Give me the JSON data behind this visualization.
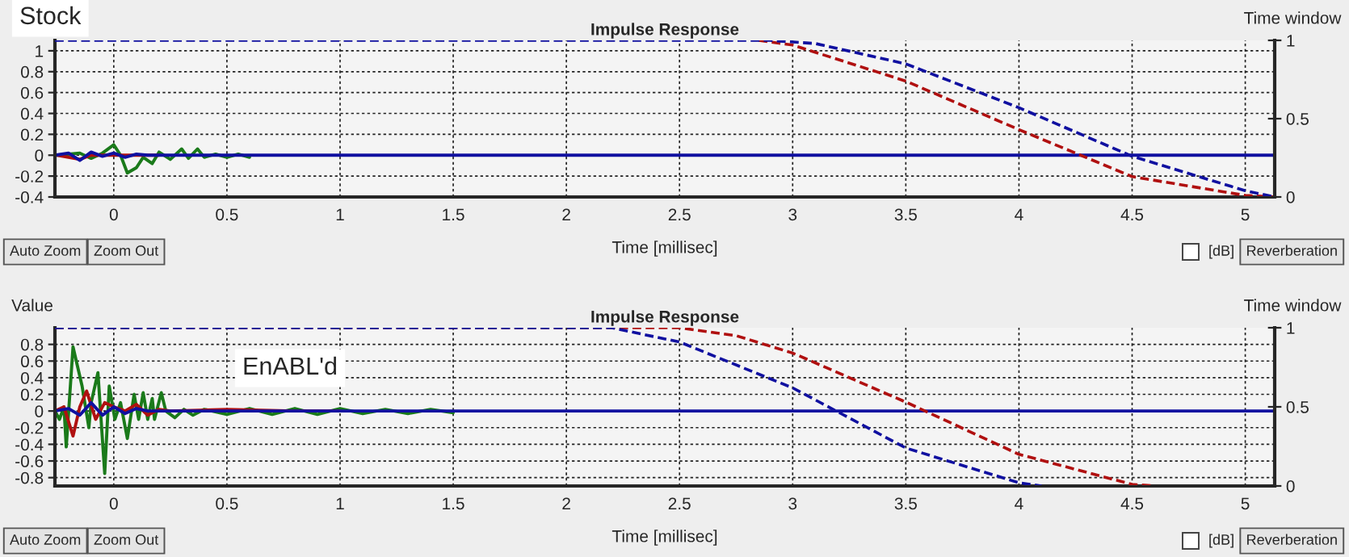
{
  "chart_data": [
    {
      "type": "line",
      "title": "Impulse Response",
      "xlabel": "Time [millisec]",
      "y2label": "Time window",
      "xlim": [
        -0.26,
        5.13
      ],
      "ylim": [
        -0.4,
        1.1
      ],
      "y2lim": [
        0,
        1
      ],
      "xticks": [
        0,
        0.5,
        1,
        1.5,
        2,
        2.5,
        3,
        3.5,
        4,
        4.5,
        5
      ],
      "yticks": [
        -0.4,
        -0.2,
        0,
        0.2,
        0.4,
        0.6,
        0.8,
        1
      ],
      "y2ticks": [
        0,
        0.5,
        1
      ],
      "grid": true,
      "legend": false,
      "annotations": [
        "Stock",
        "Auto Zoom",
        "Zoom Out",
        "[dB]",
        "Reverberation"
      ],
      "series": [
        {
          "color": "#1a7a1a",
          "x": [
            -0.25,
            -0.15,
            -0.1,
            -0.05,
            0,
            0.03,
            0.06,
            0.1,
            0.13,
            0.17,
            0.2,
            0.25,
            0.3,
            0.33,
            0.37,
            0.4,
            0.45,
            0.5,
            0.55,
            0.6
          ],
          "values": [
            0,
            0.02,
            -0.03,
            0.02,
            0.1,
            0,
            -0.17,
            -0.12,
            -0.02,
            -0.08,
            0.03,
            -0.04,
            0.06,
            -0.03,
            0.06,
            -0.02,
            0.01,
            -0.02,
            0.01,
            -0.02
          ]
        },
        {
          "color": "#b01010",
          "x": [
            -0.25,
            -0.15,
            -0.1,
            -0.05,
            0,
            0.1,
            0.2
          ],
          "values": [
            0,
            -0.04,
            0,
            0,
            0,
            0,
            0
          ]
        },
        {
          "color": "#1010a0",
          "x": [
            -0.26,
            -0.2,
            -0.15,
            -0.1,
            -0.05,
            0,
            0.05,
            0.1,
            0.15,
            5.13
          ],
          "values": [
            0,
            0.02,
            -0.05,
            0.03,
            -0.01,
            0.02,
            -0.02,
            0.01,
            0,
            0
          ]
        },
        {
          "color": "#b01010",
          "axis": "y2",
          "line_style": "dashed",
          "x": [
            2.85,
            3.0,
            3.5,
            4.0,
            4.5,
            5.0,
            5.13
          ],
          "values": [
            1,
            0.97,
            0.74,
            0.43,
            0.13,
            0.01,
            0
          ]
        },
        {
          "color": "#1010a0",
          "axis": "y2",
          "line_style": "dashed",
          "x": [
            -0.26,
            2.9,
            3.1,
            3.5,
            4.0,
            4.5,
            5.0,
            5.13
          ],
          "values": [
            1,
            1,
            0.98,
            0.85,
            0.57,
            0.26,
            0.04,
            0
          ]
        }
      ]
    },
    {
      "type": "line",
      "title": "Impulse Response",
      "xlabel": "Time [millisec]",
      "ylabel": "Value",
      "y2label": "Time window",
      "xlim": [
        -0.26,
        5.13
      ],
      "ylim": [
        -0.9,
        1.0
      ],
      "y2lim": [
        0,
        1
      ],
      "xticks": [
        0,
        0.5,
        1,
        1.5,
        2,
        2.5,
        3,
        3.5,
        4,
        4.5,
        5
      ],
      "yticks": [
        -0.8,
        -0.6,
        -0.4,
        -0.2,
        0,
        0.2,
        0.4,
        0.6,
        0.8
      ],
      "y2ticks": [
        0,
        0.5,
        1
      ],
      "grid": true,
      "legend": false,
      "annotations": [
        "EnABL'd",
        "Auto Zoom",
        "Zoom Out",
        "[dB]",
        "Reverberation"
      ],
      "series": [
        {
          "color": "#1a7a1a",
          "x": [
            -0.26,
            -0.24,
            -0.22,
            -0.21,
            -0.18,
            -0.14,
            -0.11,
            -0.1,
            -0.07,
            -0.04,
            -0.02,
            0.005,
            0.03,
            0.06,
            0.09,
            0.11,
            0.13,
            0.15,
            0.17,
            0.18,
            0.21,
            0.23,
            0.27,
            0.31,
            0.35,
            0.4,
            0.5,
            0.6,
            0.7,
            0.8,
            0.9,
            1.0,
            1.1,
            1.2,
            1.3,
            1.4,
            1.5
          ],
          "values": [
            0,
            -0.1,
            0.05,
            -0.43,
            0.77,
            0.3,
            -0.2,
            0.1,
            0.46,
            -0.75,
            0.3,
            -0.1,
            0.1,
            -0.33,
            0.2,
            -0.1,
            0.22,
            -0.1,
            0.15,
            -0.1,
            0.22,
            0,
            -0.08,
            0.02,
            -0.05,
            0.02,
            -0.04,
            0.03,
            -0.04,
            0.03,
            -0.04,
            0.03,
            -0.03,
            0.02,
            -0.03,
            0.02,
            -0.02
          ]
        },
        {
          "color": "#b01010",
          "x": [
            -0.26,
            -0.22,
            -0.18,
            -0.15,
            -0.12,
            -0.08,
            -0.04,
            0,
            0.05,
            0.1,
            0.15,
            0.2,
            0.25,
            0.5,
            0.8,
            1.0
          ],
          "values": [
            0,
            0.05,
            -0.3,
            0.05,
            0.24,
            -0.1,
            0.1,
            0.05,
            0,
            0.08,
            -0.05,
            0.02,
            0,
            0.02,
            0,
            0
          ]
        },
        {
          "color": "#1010a0",
          "x": [
            -0.26,
            -0.2,
            -0.15,
            -0.1,
            -0.05,
            0,
            0.05,
            0.1,
            0.15,
            5.13
          ],
          "values": [
            0,
            0.03,
            -0.05,
            0.1,
            -0.05,
            0.05,
            -0.03,
            0.03,
            0,
            0
          ]
        },
        {
          "color": "#b01010",
          "axis": "y2",
          "line_style": "dashed",
          "x": [
            -0.26,
            2.5,
            2.75,
            3.0,
            3.5,
            4.0,
            4.5,
            4.6
          ],
          "values": [
            1,
            1,
            0.95,
            0.84,
            0.53,
            0.2,
            0.01,
            0
          ]
        },
        {
          "color": "#1010a0",
          "axis": "y2",
          "line_style": "dashed",
          "x": [
            -0.26,
            2.2,
            2.5,
            3.0,
            3.5,
            4.0,
            4.1
          ],
          "values": [
            1,
            1,
            0.91,
            0.62,
            0.24,
            0.02,
            0
          ]
        }
      ]
    }
  ]
}
